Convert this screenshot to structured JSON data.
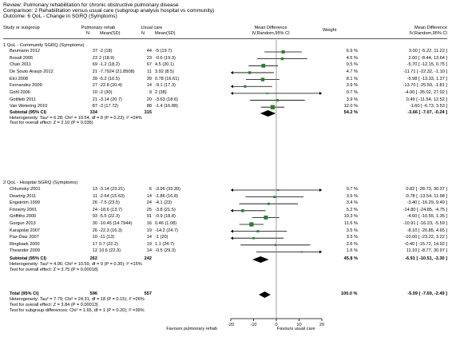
{
  "header": {
    "review": "Review:  Pulmonary rehabilitation for chronic obstructive pulmonary disease",
    "comparison": "Comparison:  2 Rehabilitation versus usual care (subgroup analysis hospital vs community)",
    "outcome": "Outcome:  6 QoL - Change in SGRQ (Symptoms)"
  },
  "columns": {
    "study": "Study or subgroup",
    "exp": "Pulmonary rehab",
    "ctl": "Usual care",
    "n1": "N",
    "mean1": "Mean(SD)",
    "n2": "N",
    "mean2": "Mean(SD)",
    "md1": "Mean Difference",
    "md2": "IV,Random,95% CI",
    "weight": "Weight",
    "md3": "Mean Difference",
    "md4": "IV,Random,95% CI"
  },
  "footer": {
    "total_label": "Total (95% CI)",
    "total_n1": "596",
    "total_n2": "557",
    "total_weight": "100.0 %",
    "total_ci": "-5.09 [ -7.69, -2.49 ]",
    "het": "Heterogeneity: Tau² = 7.79; Chi² = 24.31, df = 18 (P = 0.15); I² =26%",
    "overall": "Test for overall effect: Z = 3.84 (P = 0.00013)",
    "subgroup_diff": "Test for subgroup differences: Chi² = 1.65, df = 1 (P = 0.20), I² =39%",
    "favours_left": "Favours pulmonary rehab",
    "favours_right": "Favours usual care"
  },
  "chart_data": {
    "type": "forest",
    "axis": {
      "min": -20,
      "max": 20,
      "ticks": [
        -20,
        -10,
        0,
        10,
        20
      ]
    },
    "subgroups": [
      {
        "title": "1 QoL - Community SGRQ (Symptoms)",
        "studies": [
          {
            "name": "Beumann 2012",
            "n1": "37",
            "m1": "-2 (18)",
            "n2": "44",
            "m2": "-5 (19.7)",
            "weight": "6.9 %",
            "ci": "3.00 [ -5.22, 11.22 ]",
            "md": 3.0,
            "lo": -5.22,
            "hi": 11.22,
            "w": 6.9
          },
          {
            "name": "Boxall 2005",
            "n1": "23",
            "m1": "2 (18.9)",
            "n2": "23",
            "m2": "-0.6 (19.3)",
            "weight": "4.5 %",
            "ci": "2.60 [ -8.44, 13.64 ]",
            "md": 2.6,
            "lo": -8.44,
            "hi": 13.64,
            "w": 4.5
          },
          {
            "name": "Chan 2011",
            "n1": "69",
            "m1": "-1.2 (18.2)",
            "n2": "67",
            "m2": "4.5 (20.1)",
            "weight": "9.5 %",
            "ci": "-5.70 [ -12.15, 0.75 ]",
            "md": -5.7,
            "lo": -12.15,
            "hi": 0.75,
            "w": 9.5
          },
          {
            "name": "De Souto Araujo 2012",
            "n1": "21",
            "m1": "-7.7924 (21.8508)",
            "n2": "11",
            "m2": "3.92 (8.5)",
            "weight": "4.7 %",
            "ci": "-11.71 [ -22.32, -1.10 ]",
            "md": -11.71,
            "lo": -22.32,
            "hi": -1.1,
            "w": 4.7
          },
          {
            "name": "Elci 2008",
            "n1": "39",
            "m1": "-5.2 (16.5)",
            "n2": "39",
            "m2": "0.78 (16.61)",
            "weight": "8.1 %",
            "ci": "-5.98 [ -13.33, 1.37 ]",
            "md": -5.98,
            "lo": -13.33,
            "hi": 1.37,
            "w": 8.1
          },
          {
            "name": "Fernandez 2009",
            "n1": "27",
            "m1": "-22.8 (20.4)",
            "n2": "14",
            "m2": "-9.1 (17.3)",
            "weight": "3.9 %",
            "ci": "-13.70 [ -25.59, -1.81 ]",
            "md": -13.7,
            "lo": -25.59,
            "hi": -1.81,
            "w": 3.9
          },
          {
            "name": "Gohl 2006",
            "n1": "10",
            "m1": "-2 (30)",
            "n2": "9",
            "m2": "2 (38)",
            "weight": "0.7 %",
            "ci": "-4.00 [ -35.02, 27.02 ]",
            "md": -4.0,
            "lo": -35.02,
            "hi": 27.02,
            "w": 0.7
          },
          {
            "name": "Gottlieb 2011",
            "n1": "21",
            "m1": "-3.14 (20.7)",
            "n2": "20",
            "m2": "-3.63 (18.6)",
            "weight": "3.9 %",
            "ci": "0.49 [ -11.54, 12.52 ]",
            "md": 0.49,
            "lo": -11.54,
            "hi": 12.52,
            "w": 3.9
          },
          {
            "name": "Van Wetering 2010",
            "n1": "87",
            "m1": "-3 (17.72)",
            "n2": "88",
            "m2": "-1.4 (16.88)",
            "weight": "12.0 %",
            "ci": "-1.60 [ -6.73, 3.53 ]",
            "md": -1.6,
            "lo": -6.73,
            "hi": 3.53,
            "w": 12.0
          }
        ],
        "subtotal": {
          "label": "Subtotal (95% CI)",
          "n1": "334",
          "n2": "315",
          "weight": "54.2 %",
          "ci": "-3.66 [ -7.07, -0.24 ]",
          "md": -3.66,
          "lo": -7.07,
          "hi": -0.24
        },
        "het": "Heterogeneity: Tau² = 6.28; Chi² = 10.54, df = 8 (P = 0.23); I² =24%",
        "test": "Test for overall effect: Z = 2.10 (P = 0.036)"
      },
      {
        "title": "2 QoL - Hospital SGRQ (Symptoms)",
        "studies": [
          {
            "name": "Chlumsky 2001",
            "n1": "13",
            "m1": "-3.14 (23.21)",
            "n2": "6",
            "m2": "-3.96 (33.39)",
            "weight": "0.7 %",
            "ci": "0.82 [ -28.73, 30.37 ]",
            "md": 0.82,
            "lo": -28.73,
            "hi": 30.37,
            "w": 0.7
          },
          {
            "name": "Dearing 2011",
            "n1": "11",
            "m1": "-2.64 (15.63)",
            "n2": "14",
            "m2": "-1.86 (16.8)",
            "weight": "3.5 %",
            "ci": "-0.78 [ -13.54, 11.98 ]",
            "md": -0.78,
            "lo": -13.54,
            "hi": 11.98,
            "w": 3.5
          },
          {
            "name": "Engström 1999",
            "n1": "26",
            "m1": "-7.5 (23.5)",
            "n2": "24",
            "m2": "-4.1 (23)",
            "weight": "3.4 %",
            "ci": "-3.40 [ -16.29, 9.49 ]",
            "md": -3.4,
            "lo": -16.29,
            "hi": 9.49,
            "w": 3.4
          },
          {
            "name": "Finnerty 2001",
            "n1": "24",
            "m1": "-18.6 (13.7)",
            "n2": "25",
            "m2": "-3.8 (21.5)",
            "weight": "5.2 %",
            "ci": "-14.80 [ -24.85, -4.75 ]",
            "md": -14.8,
            "lo": -24.85,
            "hi": -4.75,
            "w": 5.2
          },
          {
            "name": "Griffiths 2000",
            "n1": "93",
            "m1": "-5.5 (22.3)",
            "n2": "91",
            "m2": "-0.9 (18.8)",
            "weight": "10.3 %",
            "ci": "-4.60 [ -10.55, 1.35 ]",
            "md": -4.6,
            "lo": -10.55,
            "hi": 1.35,
            "w": 10.3
          },
          {
            "name": "Gurgun 2013",
            "n1": "30",
            "m1": "-10.45 (14.7944)",
            "n2": "16",
            "m2": "0.46 (1.08)",
            "weight": "11.6 %",
            "ci": "-10.91 [ -16.23, -5.59 ]",
            "md": -10.91,
            "lo": -16.23,
            "hi": -5.59,
            "w": 11.6
          },
          {
            "name": "Karapolat 2007",
            "n1": "26",
            "m1": "-22.3 (16.3)",
            "n2": "19",
            "m2": "-14.2 (24.7)",
            "weight": "3.5 %",
            "ci": "-8.10 [ -20.85, 4.65 ]",
            "md": -8.1,
            "lo": -20.85,
            "hi": 4.65,
            "w": 3.5
          },
          {
            "name": "Paz-Diaz 2007",
            "n1": "10",
            "m1": "-11 (13)",
            "n2": "14",
            "m2": "-1 (20)",
            "weight": "3.3 %",
            "ci": "-10.00 [ -23.22, 3.22 ]",
            "md": -10.0,
            "lo": -23.22,
            "hi": 3.22,
            "w": 3.3
          },
          {
            "name": "Ringbaek 2000",
            "n1": "17",
            "m1": "0.7 (22.2)",
            "n2": "19",
            "m2": "1.1 (24.7)",
            "weight": "2.6 %",
            "ci": "-0.40 [ -15.72, 14.92 ]",
            "md": -0.4,
            "lo": -15.72,
            "hi": 14.92,
            "w": 2.6
          },
          {
            "name": "Theander 2009",
            "n1": "12",
            "m1": "10.6 (22.3)",
            "n2": "14",
            "m2": "-0.5 (29.3)",
            "weight": "1.6 %",
            "ci": "11.10 [ -8.77, 30.97 ]",
            "md": 11.1,
            "lo": -8.77,
            "hi": 30.97,
            "w": 1.6
          }
        ],
        "subtotal": {
          "label": "Subtotal (95% CI)",
          "n1": "262",
          "n2": "242",
          "weight": "45.8 %",
          "ci": "-6.91 [ -10.51, -3.30 ]",
          "md": -6.91,
          "lo": -10.51,
          "hi": -3.3
        },
        "het": "Heterogeneity: Tau² = 4.96; Chi² = 10.59, df = 9 (P = 0.30); I² =15%",
        "test": "Test for overall effect: Z = 3.75 (P = 0.00018)"
      }
    ],
    "overall": {
      "md": -5.09,
      "lo": -7.69,
      "hi": -2.49
    }
  }
}
